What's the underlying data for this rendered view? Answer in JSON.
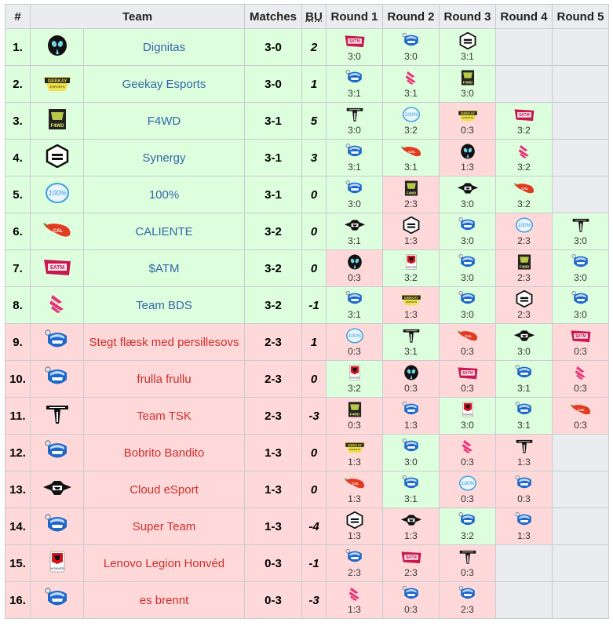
{
  "headers": {
    "rank": "#",
    "team": "Team",
    "matches": "Matches",
    "bu": "BU",
    "rounds": [
      "Round 1",
      "Round 2",
      "Round 3",
      "Round 4",
      "Round 5"
    ]
  },
  "colors": {
    "win": "#ddffdd",
    "lose": "#ffd9d9",
    "empty": "#eaecf0",
    "link": "#3366aa",
    "lose_link": "#d02c2c"
  },
  "rows": [
    {
      "rank": "1.",
      "team": "Dignitas",
      "logo": "dignitas",
      "matches": "3-0",
      "bu": "2",
      "status": "win",
      "rounds": [
        {
          "opp": "atm",
          "score": "3:0",
          "res": "w"
        },
        {
          "opp": "rl",
          "score": "3:0",
          "res": "w"
        },
        {
          "opp": "synergy",
          "score": "3:1",
          "res": "w"
        },
        null,
        null
      ]
    },
    {
      "rank": "2.",
      "team": "Geekay Esports",
      "logo": "geekay",
      "matches": "3-0",
      "bu": "1",
      "status": "win",
      "rounds": [
        {
          "opp": "rl",
          "score": "3:1",
          "res": "w"
        },
        {
          "opp": "bds",
          "score": "3:1",
          "res": "w"
        },
        {
          "opp": "f4wd",
          "score": "3:0",
          "res": "w"
        },
        null,
        null
      ]
    },
    {
      "rank": "3.",
      "team": "F4WD",
      "logo": "f4wd",
      "matches": "3-1",
      "bu": "5",
      "status": "win",
      "rounds": [
        {
          "opp": "tsk",
          "score": "3:0",
          "res": "w"
        },
        {
          "opp": "hundred",
          "score": "3:2",
          "res": "w"
        },
        {
          "opp": "geekay",
          "score": "0:3",
          "res": "l"
        },
        {
          "opp": "atm",
          "score": "3:2",
          "res": "w"
        },
        null
      ]
    },
    {
      "rank": "4.",
      "team": "Synergy",
      "logo": "synergy",
      "matches": "3-1",
      "bu": "3",
      "status": "win",
      "rounds": [
        {
          "opp": "rl",
          "score": "3:1",
          "res": "w"
        },
        {
          "opp": "caliente",
          "score": "3:1",
          "res": "w"
        },
        {
          "opp": "dignitas",
          "score": "1:3",
          "res": "l"
        },
        {
          "opp": "bds",
          "score": "3:2",
          "res": "w"
        },
        null
      ]
    },
    {
      "rank": "5.",
      "team": "100%",
      "logo": "hundred",
      "matches": "3-1",
      "bu": "0",
      "status": "win",
      "rounds": [
        {
          "opp": "rl",
          "score": "3:0",
          "res": "w"
        },
        {
          "opp": "f4wd",
          "score": "2:3",
          "res": "l"
        },
        {
          "opp": "cloud",
          "score": "3:0",
          "res": "w"
        },
        {
          "opp": "caliente",
          "score": "3:2",
          "res": "w"
        },
        null
      ]
    },
    {
      "rank": "6.",
      "team": "CALIENTE",
      "logo": "caliente",
      "matches": "3-2",
      "bu": "0",
      "status": "win",
      "rounds": [
        {
          "opp": "cloud",
          "score": "3:1",
          "res": "w"
        },
        {
          "opp": "synergy",
          "score": "1:3",
          "res": "l"
        },
        {
          "opp": "rl",
          "score": "3:0",
          "res": "w"
        },
        {
          "opp": "hundred",
          "score": "2:3",
          "res": "l"
        },
        {
          "opp": "tsk",
          "score": "3:0",
          "res": "w"
        }
      ]
    },
    {
      "rank": "7.",
      "team": "$ATM",
      "logo": "atm",
      "matches": "3-2",
      "bu": "0",
      "status": "win",
      "rounds": [
        {
          "opp": "dignitas",
          "score": "0:3",
          "res": "l"
        },
        {
          "opp": "honved",
          "score": "3:2",
          "res": "w"
        },
        {
          "opp": "rl",
          "score": "3:0",
          "res": "w"
        },
        {
          "opp": "f4wd",
          "score": "2:3",
          "res": "l"
        },
        {
          "opp": "rl",
          "score": "3:0",
          "res": "w"
        }
      ]
    },
    {
      "rank": "8.",
      "team": "Team BDS",
      "logo": "bds",
      "matches": "3-2",
      "bu": "-1",
      "status": "win",
      "rounds": [
        {
          "opp": "rl",
          "score": "3:1",
          "res": "w"
        },
        {
          "opp": "geekay",
          "score": "1:3",
          "res": "l"
        },
        {
          "opp": "rl",
          "score": "3:0",
          "res": "w"
        },
        {
          "opp": "synergy",
          "score": "2:3",
          "res": "l"
        },
        {
          "opp": "rl",
          "score": "3:0",
          "res": "w"
        }
      ]
    },
    {
      "rank": "9.",
      "team": "Stegt flæsk med persillesovs",
      "logo": "rl",
      "matches": "2-3",
      "bu": "1",
      "status": "lose",
      "rounds": [
        {
          "opp": "hundred",
          "score": "0:3",
          "res": "l"
        },
        {
          "opp": "tsk",
          "score": "3:1",
          "res": "w"
        },
        {
          "opp": "caliente",
          "score": "0:3",
          "res": "l"
        },
        {
          "opp": "cloud",
          "score": "3:0",
          "res": "w"
        },
        {
          "opp": "atm",
          "score": "0:3",
          "res": "l"
        }
      ]
    },
    {
      "rank": "10.",
      "team": "frulla frullu",
      "logo": "rl",
      "matches": "2-3",
      "bu": "0",
      "status": "lose",
      "rounds": [
        {
          "opp": "honved",
          "score": "3:2",
          "res": "w"
        },
        {
          "opp": "dignitas",
          "score": "0:3",
          "res": "l"
        },
        {
          "opp": "atm",
          "score": "0:3",
          "res": "l"
        },
        {
          "opp": "rl",
          "score": "3:1",
          "res": "w"
        },
        {
          "opp": "bds",
          "score": "0:3",
          "res": "l"
        }
      ]
    },
    {
      "rank": "11.",
      "team": "Team TSK",
      "logo": "tsk",
      "matches": "2-3",
      "bu": "-3",
      "status": "lose",
      "rounds": [
        {
          "opp": "f4wd",
          "score": "0:3",
          "res": "l"
        },
        {
          "opp": "rl",
          "score": "1:3",
          "res": "l"
        },
        {
          "opp": "honved",
          "score": "3:0",
          "res": "w"
        },
        {
          "opp": "rl",
          "score": "3:1",
          "res": "w"
        },
        {
          "opp": "caliente",
          "score": "0:3",
          "res": "l"
        }
      ]
    },
    {
      "rank": "12.",
      "team": "Bobrito Bandito",
      "logo": "rl",
      "matches": "1-3",
      "bu": "0",
      "status": "lose",
      "rounds": [
        {
          "opp": "geekay",
          "score": "1:3",
          "res": "l"
        },
        {
          "opp": "rl",
          "score": "3:0",
          "res": "w"
        },
        {
          "opp": "bds",
          "score": "0:3",
          "res": "l"
        },
        {
          "opp": "tsk",
          "score": "1:3",
          "res": "l"
        },
        null
      ]
    },
    {
      "rank": "13.",
      "team": "Cloud eSport",
      "logo": "cloud",
      "matches": "1-3",
      "bu": "0",
      "status": "lose",
      "rounds": [
        {
          "opp": "caliente",
          "score": "1:3",
          "res": "l"
        },
        {
          "opp": "rl",
          "score": "3:1",
          "res": "w"
        },
        {
          "opp": "hundred",
          "score": "0:3",
          "res": "l"
        },
        {
          "opp": "rl",
          "score": "0:3",
          "res": "l"
        },
        null
      ]
    },
    {
      "rank": "14.",
      "team": "Super Team",
      "logo": "rl",
      "matches": "1-3",
      "bu": "-4",
      "status": "lose",
      "rounds": [
        {
          "opp": "synergy",
          "score": "1:3",
          "res": "l"
        },
        {
          "opp": "cloud",
          "score": "1:3",
          "res": "l"
        },
        {
          "opp": "rl",
          "score": "3:2",
          "res": "w"
        },
        {
          "opp": "rl",
          "score": "1:3",
          "res": "l"
        },
        null
      ]
    },
    {
      "rank": "15.",
      "team": "Lenovo Legion Honvéd",
      "logo": "honved",
      "matches": "0-3",
      "bu": "-1",
      "status": "lose",
      "rounds": [
        {
          "opp": "rl",
          "score": "2:3",
          "res": "l"
        },
        {
          "opp": "atm",
          "score": "2:3",
          "res": "l"
        },
        {
          "opp": "tsk",
          "score": "0:3",
          "res": "l"
        },
        null,
        null
      ]
    },
    {
      "rank": "16.",
      "team": "es brennt",
      "logo": "rl",
      "matches": "0-3",
      "bu": "-3",
      "status": "lose",
      "rounds": [
        {
          "opp": "bds",
          "score": "1:3",
          "res": "l"
        },
        {
          "opp": "rl",
          "score": "0:3",
          "res": "l"
        },
        {
          "opp": "rl",
          "score": "2:3",
          "res": "l"
        },
        null,
        null
      ]
    }
  ]
}
